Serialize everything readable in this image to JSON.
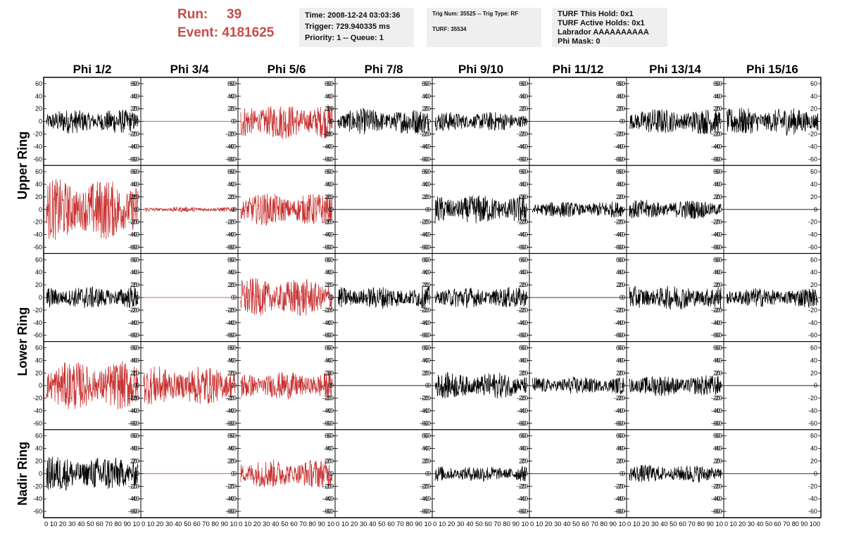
{
  "header": {
    "run_label": "Run:",
    "run_value": "39",
    "event_label": "Event:",
    "event_value": "4181625",
    "time": "Time: 2008-12-24 03:03:36",
    "trigger": "Trigger: 729.940335 ms",
    "priority": "Priority: 1 -- Queue: 1",
    "trig_num": "Trig Num: 35525 -- Trig Type: RF",
    "turf": "TURF: 35534",
    "turf_hold": "TURF This Hold: 0x1",
    "turf_active": "TURF Active Holds: 0x1",
    "labrador": "Labrador AAAAAAAAAA",
    "phi_mask": "Phi Mask: 0"
  },
  "colors": {
    "triggered": "#c83232",
    "normal": "#000000",
    "accent_text": "#c94a4a",
    "panel": "#efefef"
  },
  "chart_data": {
    "type": "line",
    "columns": [
      "Phi 1/2",
      "Phi 3/4",
      "Phi 5/6",
      "Phi 7/8",
      "Phi 9/10",
      "Phi 11/12",
      "Phi 13/14",
      "Phi 15/16"
    ],
    "rows": [
      {
        "label": "Upper Ring",
        "spans": 2
      },
      {
        "label": "Lower Ring",
        "spans": 2
      },
      {
        "label": "Nadir Ring",
        "spans": 1
      }
    ],
    "ylim": [
      -70,
      70
    ],
    "yticks": [
      "-60",
      "-40",
      "-20",
      "0",
      "20",
      "40",
      "60"
    ],
    "xlim": [
      0,
      100
    ],
    "xtick_labels": [
      "0",
      "10",
      "20",
      "30",
      "40",
      "50",
      "60",
      "70",
      "80",
      "90",
      "100"
    ],
    "xtick_text_last_panel": "0 10 20 30 40 50 60 70 80 90 100",
    "xtick_text_other_panels": "0 10 20 30 40 50 60 70 80 90 10",
    "panels": [
      [
        {
          "amp": 15,
          "color": "normal"
        },
        {
          "amp": 0,
          "color": "triggered"
        },
        {
          "amp": 22,
          "color": "triggered"
        },
        {
          "amp": 16,
          "color": "normal"
        },
        {
          "amp": 12,
          "color": "normal"
        },
        {
          "amp": 0,
          "color": "normal"
        },
        {
          "amp": 16,
          "color": "normal"
        },
        {
          "amp": 17,
          "color": "normal"
        }
      ],
      [
        {
          "amp": 38,
          "color": "triggered"
        },
        {
          "amp": 3,
          "color": "triggered"
        },
        {
          "amp": 20,
          "color": "triggered"
        },
        {
          "amp": 0,
          "color": "normal"
        },
        {
          "amp": 18,
          "color": "normal"
        },
        {
          "amp": 10,
          "color": "normal"
        },
        {
          "amp": 12,
          "color": "normal"
        },
        {
          "amp": 0,
          "color": "normal"
        }
      ],
      [
        {
          "amp": 14,
          "color": "normal"
        },
        {
          "amp": 0,
          "color": "triggered"
        },
        {
          "amp": 24,
          "color": "triggered"
        },
        {
          "amp": 14,
          "color": "normal"
        },
        {
          "amp": 13,
          "color": "normal"
        },
        {
          "amp": 0,
          "color": "normal"
        },
        {
          "amp": 15,
          "color": "normal"
        },
        {
          "amp": 12,
          "color": "normal"
        }
      ],
      [
        {
          "amp": 30,
          "color": "triggered"
        },
        {
          "amp": 24,
          "color": "triggered"
        },
        {
          "amp": 17,
          "color": "triggered"
        },
        {
          "amp": 0,
          "color": "normal"
        },
        {
          "amp": 16,
          "color": "normal"
        },
        {
          "amp": 11,
          "color": "normal"
        },
        {
          "amp": 13,
          "color": "normal"
        },
        {
          "amp": 0,
          "color": "normal"
        }
      ],
      [
        {
          "amp": 22,
          "color": "normal"
        },
        {
          "amp": 0,
          "color": "triggered"
        },
        {
          "amp": 18,
          "color": "triggered"
        },
        {
          "amp": 0,
          "color": "normal"
        },
        {
          "amp": 10,
          "color": "normal"
        },
        {
          "amp": 0,
          "color": "normal"
        },
        {
          "amp": 11,
          "color": "normal"
        },
        {
          "amp": 0,
          "color": "normal"
        }
      ]
    ]
  }
}
